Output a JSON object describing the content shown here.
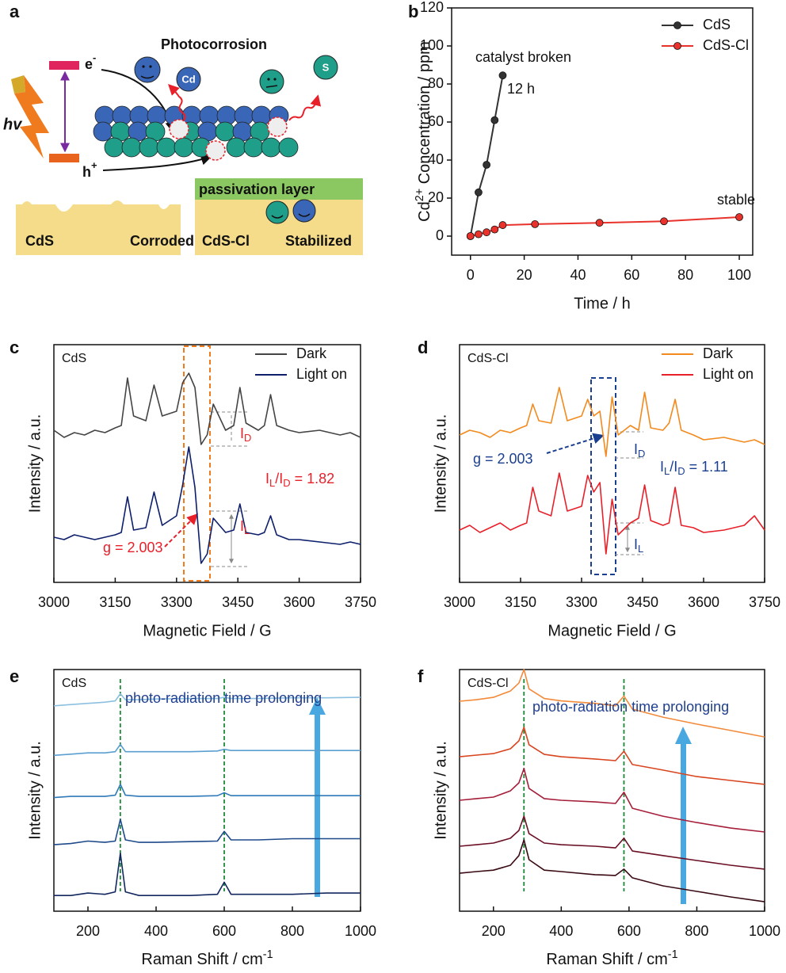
{
  "diagram": {
    "label": "a",
    "title": "Photocorrosion",
    "electron": [
      "e",
      "-"
    ],
    "hole": [
      "h",
      "+"
    ],
    "light": "hv",
    "ion_cd": "Cd",
    "ion_s": "S",
    "layer": "passivation layer",
    "left_material": "CdS",
    "left_state": "Corroded",
    "right_material": "CdS-Cl",
    "right_state": "Stabilized"
  },
  "chart_data": [
    {
      "type": "line",
      "label": "b",
      "xlabel": "Time / h",
      "ylabel_parts": [
        "Cd",
        "2+",
        " Concentration / ppm"
      ],
      "xlim": [
        -7,
        105
      ],
      "xticks": [
        0,
        20,
        40,
        60,
        80,
        100
      ],
      "ylim": [
        -10,
        120
      ],
      "yticks": [
        0,
        20,
        40,
        60,
        80,
        100,
        120
      ],
      "grid": false,
      "markers": true,
      "legend": "upper right",
      "series": [
        {
          "name": "CdS",
          "color": "#333333",
          "x": [
            0,
            3,
            6,
            9,
            12
          ],
          "values": [
            0,
            23,
            37.5,
            61,
            84.5
          ]
        },
        {
          "name": "CdS-Cl",
          "color": "#e8322b",
          "x": [
            0,
            3,
            6,
            9,
            12,
            24,
            48,
            72,
            100
          ],
          "values": [
            0,
            1,
            2,
            3.5,
            5.8,
            6.3,
            7,
            7.8,
            10
          ]
        }
      ],
      "annotations": [
        "catalyst broken",
        "12 h",
        "stable"
      ]
    },
    {
      "type": "line",
      "label": "c",
      "sample": "CdS",
      "xlabel": "Magnetic Field / G",
      "ylabel": "Intensity / a.u.",
      "xlim": [
        3000,
        3750
      ],
      "xticks": [
        3000,
        3150,
        3300,
        3450,
        3600,
        3750
      ],
      "ylim": [
        0,
        100
      ],
      "grid": false,
      "legend": "upper right",
      "x": [
        3000,
        3025,
        3050,
        3075,
        3100,
        3125,
        3150,
        3165,
        3180,
        3195,
        3225,
        3245,
        3265,
        3300,
        3315,
        3330,
        3345,
        3360,
        3375,
        3390,
        3420,
        3440,
        3455,
        3470,
        3500,
        3515,
        3530,
        3545,
        3575,
        3600,
        3650,
        3700,
        3725,
        3750
      ],
      "series": [
        {
          "name": "Dark",
          "color": "#444444",
          "values": [
            64,
            61,
            63,
            62,
            64,
            63,
            65,
            66,
            86,
            70,
            68,
            83,
            70,
            72,
            84,
            88,
            82,
            58,
            62,
            75,
            64,
            66,
            82,
            67,
            64,
            66,
            79,
            66,
            64,
            63,
            64,
            62,
            63,
            61
          ]
        },
        {
          "name": "Light on",
          "color": "#0d1f6b",
          "values": [
            19,
            18,
            20,
            19,
            18,
            19,
            20,
            21,
            36,
            22,
            23,
            38,
            24,
            28,
            41,
            57,
            40,
            8,
            12,
            27,
            21,
            22,
            33,
            21,
            20,
            21,
            28,
            20,
            18,
            18,
            17,
            16,
            17,
            16
          ]
        }
      ],
      "annotations": [
        [
          "I",
          "D"
        ],
        [
          "I",
          "L",
          "/I",
          "D",
          " = 1.82"
        ],
        "g = 2.003",
        [
          "I",
          "L"
        ]
      ]
    },
    {
      "type": "line",
      "label": "d",
      "sample": "CdS-Cl",
      "xlabel": "Magnetic Field / G",
      "ylabel": "Intensity / a.u.",
      "xlim": [
        3000,
        3750
      ],
      "xticks": [
        3000,
        3150,
        3300,
        3450,
        3600,
        3750
      ],
      "ylim": [
        0,
        100
      ],
      "grid": false,
      "legend": "upper right",
      "x": [
        3000,
        3025,
        3050,
        3075,
        3100,
        3125,
        3150,
        3165,
        3180,
        3195,
        3225,
        3245,
        3265,
        3300,
        3315,
        3330,
        3345,
        3360,
        3375,
        3390,
        3420,
        3440,
        3455,
        3470,
        3500,
        3515,
        3530,
        3545,
        3575,
        3600,
        3650,
        3700,
        3725,
        3750
      ],
      "series": [
        {
          "name": "Dark",
          "color": "#f28a1e",
          "values": [
            62,
            64,
            63,
            61,
            64,
            63,
            65,
            66,
            75,
            68,
            67,
            82,
            68,
            70,
            77,
            70,
            72,
            53,
            78,
            62,
            66,
            64,
            80,
            65,
            64,
            67,
            77,
            64,
            62,
            60,
            61,
            59,
            60,
            58
          ]
        },
        {
          "name": "Light on",
          "color": "#e8202a",
          "values": [
            22,
            24,
            21,
            23,
            25,
            22,
            24,
            25,
            40,
            30,
            28,
            46,
            30,
            32,
            45,
            38,
            42,
            12,
            35,
            20,
            25,
            27,
            41,
            26,
            24,
            25,
            40,
            24,
            23,
            21,
            22,
            24,
            28,
            22
          ]
        }
      ],
      "annotations": [
        "g = 2.003",
        [
          "I",
          "L",
          "/I",
          "D",
          " = 1.11"
        ],
        [
          "I",
          "D"
        ],
        [
          "I",
          "L"
        ]
      ]
    },
    {
      "type": "line",
      "label": "e",
      "sample": "CdS",
      "note": "photo-radiation time prolonging",
      "xlabel_parts": [
        "Raman Shift / cm",
        "-1"
      ],
      "ylabel": "Intensity / a.u.",
      "xlim": [
        100,
        1000
      ],
      "xticks": [
        200,
        400,
        600,
        800,
        1000
      ],
      "ylim": [
        0,
        100
      ],
      "grid": false,
      "peak_lines": [
        295,
        600
      ],
      "x": [
        100,
        150,
        200,
        250,
        280,
        295,
        310,
        350,
        400,
        500,
        580,
        600,
        620,
        700,
        800,
        900,
        1000
      ],
      "series": [
        {
          "color": "#13285e",
          "values": [
            6.5,
            6.5,
            7.5,
            7,
            8,
            24,
            8,
            6.5,
            6.5,
            6.5,
            7,
            12,
            7,
            7,
            7,
            7.5,
            7.5
          ]
        },
        {
          "color": "#1e4a8a",
          "values": [
            27.5,
            28,
            29,
            28.5,
            29,
            38,
            29.5,
            28.5,
            28.5,
            28.8,
            29,
            33,
            29.5,
            29.5,
            30,
            30,
            30
          ]
        },
        {
          "color": "#2f7ab8",
          "values": [
            47,
            47.5,
            47.5,
            47.5,
            48,
            52.5,
            48,
            47.5,
            47.5,
            47.5,
            47.8,
            49,
            47.8,
            47.8,
            47.8,
            47.8,
            47.8
          ]
        },
        {
          "color": "#5a9fd0",
          "values": [
            64.5,
            65,
            65.5,
            65.5,
            66,
            69,
            66,
            66,
            66,
            66,
            66.3,
            67,
            66.5,
            66.5,
            66.5,
            66.5,
            66.5
          ]
        },
        {
          "color": "#8cc0e0",
          "values": [
            85,
            85.5,
            86,
            86.5,
            87,
            90,
            87.5,
            87.5,
            87.8,
            88,
            88,
            88.5,
            88,
            88,
            88.3,
            88.3,
            88.5
          ]
        }
      ]
    },
    {
      "type": "line",
      "label": "f",
      "sample": "CdS-Cl",
      "note": "photo-radiation time prolonging",
      "xlabel_parts": [
        "Raman Shift / cm",
        "-1"
      ],
      "ylabel": "Intensity / a.u.",
      "xlim": [
        100,
        1000
      ],
      "xticks": [
        200,
        400,
        600,
        800,
        1000
      ],
      "ylim": [
        0,
        100
      ],
      "grid": false,
      "peak_lines": [
        290,
        585
      ],
      "x": [
        100,
        150,
        200,
        250,
        275,
        290,
        305,
        350,
        400,
        500,
        560,
        585,
        610,
        700,
        800,
        900,
        1000
      ],
      "series": [
        {
          "color": "#3a0a14",
          "values": [
            15.7,
            16.4,
            17,
            19,
            23,
            29.5,
            21.3,
            17,
            16.4,
            15.1,
            14.8,
            17.4,
            13.8,
            10.5,
            8.2,
            5.9,
            3.9
          ]
        },
        {
          "color": "#6b0f25",
          "values": [
            26.9,
            27.5,
            28.2,
            30.2,
            33.4,
            39.3,
            32.1,
            28.2,
            27.5,
            26.9,
            26.2,
            30.2,
            24.9,
            23,
            21,
            19,
            17.4
          ]
        },
        {
          "color": "#a61e3a",
          "values": [
            45.9,
            46.6,
            47.2,
            49.8,
            53.1,
            59,
            50.8,
            46.6,
            45.9,
            45.2,
            44.6,
            49.2,
            42.6,
            39.3,
            36.7,
            34.4,
            32.8
          ]
        },
        {
          "color": "#d9451f",
          "values": [
            63.9,
            64.6,
            65.2,
            67.2,
            70.5,
            76.1,
            68.9,
            64.9,
            63.9,
            63,
            62.3,
            66.2,
            60.7,
            58.4,
            55.7,
            54.1,
            52.5
          ]
        },
        {
          "color": "#f28a3a",
          "values": [
            86.9,
            87.5,
            88.5,
            91.1,
            94.4,
            100,
            92,
            88,
            87,
            86,
            85,
            89,
            83.6,
            80.3,
            77.4,
            74.8,
            72.1
          ]
        }
      ]
    }
  ]
}
